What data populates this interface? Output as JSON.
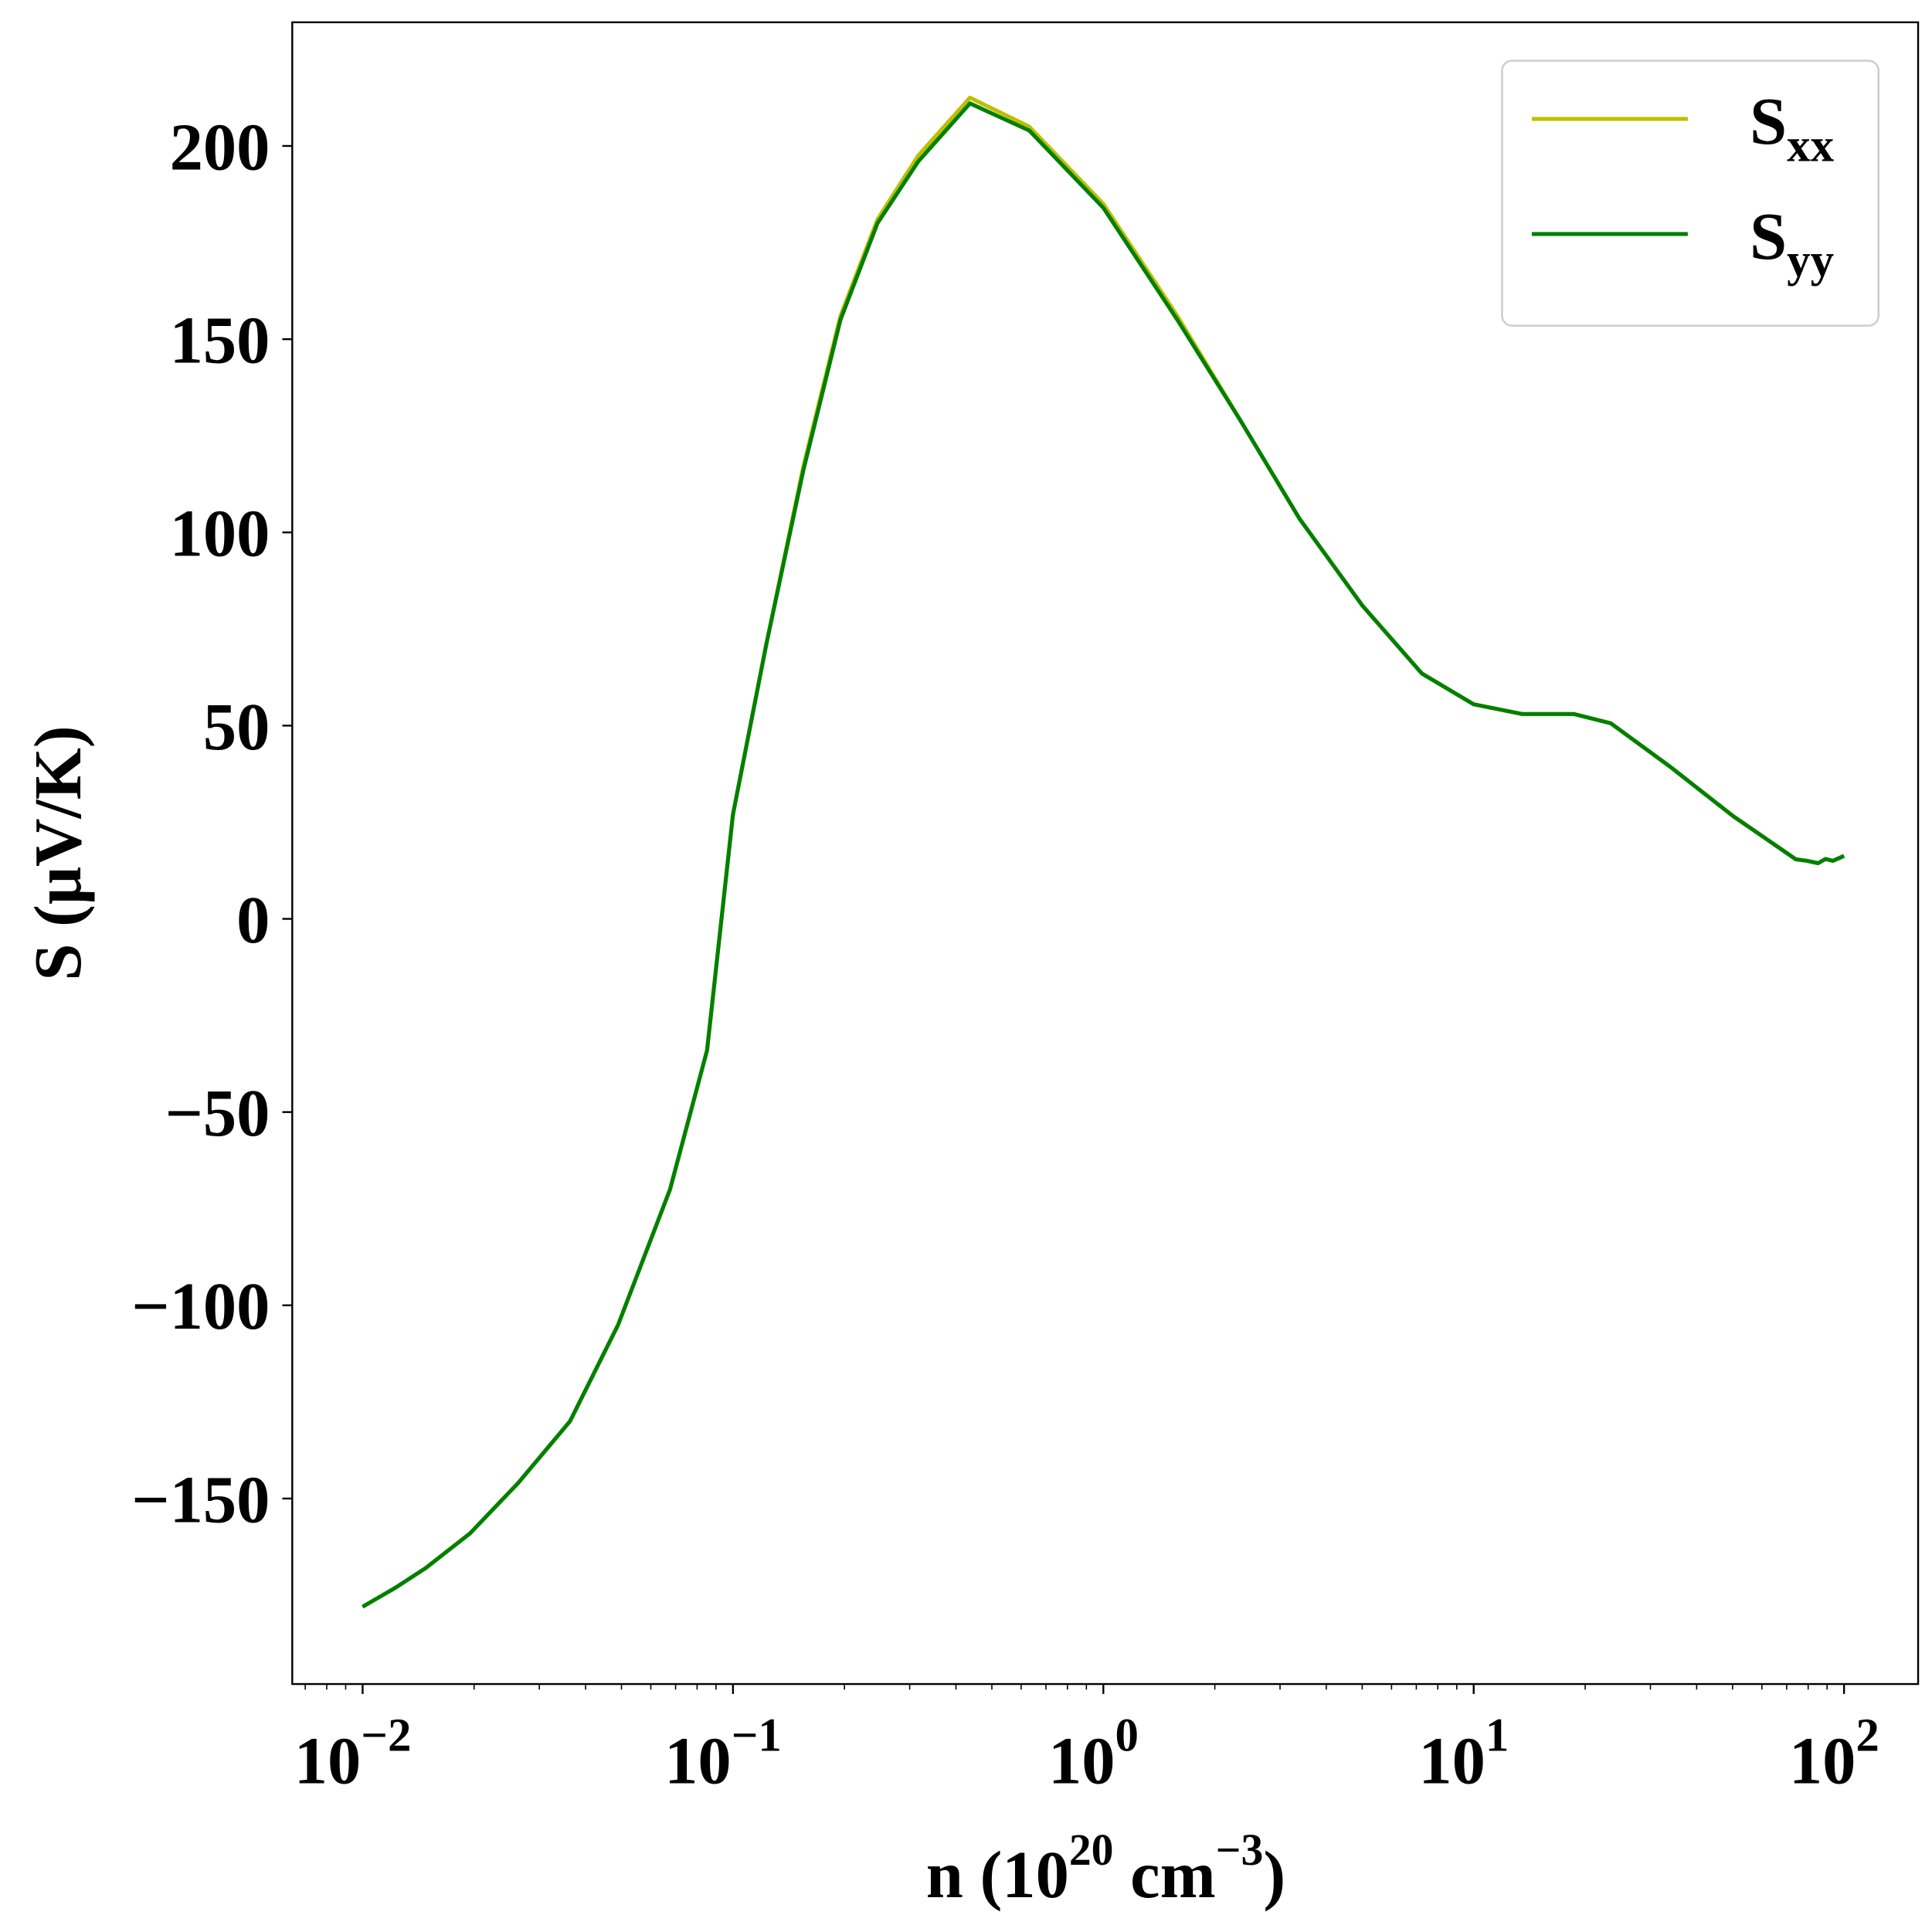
{
  "chart_data": {
    "type": "line",
    "xscale": "log",
    "xlabel": {
      "prefix": "n (10",
      "exp1": "20",
      "mid": " cm",
      "exp2": "−3",
      "suffix": ")"
    },
    "ylabel": "S (μV/K)",
    "xlim_log10": [
      -2.19,
      2.2
    ],
    "ylim": [
      -198,
      232
    ],
    "grid": false,
    "legend_placement": "top-right",
    "x_ticks": [
      {
        "value": 0.01,
        "base": "10",
        "exp": "−2"
      },
      {
        "value": 0.1,
        "base": "10",
        "exp": "−1"
      },
      {
        "value": 1,
        "base": "10",
        "exp": "0"
      },
      {
        "value": 10,
        "base": "10",
        "exp": "1"
      },
      {
        "value": 100,
        "base": "10",
        "exp": "2"
      }
    ],
    "y_ticks": [
      {
        "value": -150,
        "label": "−150"
      },
      {
        "value": -100,
        "label": "−100"
      },
      {
        "value": -50,
        "label": "−50"
      },
      {
        "value": 0,
        "label": "0"
      },
      {
        "value": 50,
        "label": "50"
      },
      {
        "value": 100,
        "label": "100"
      },
      {
        "value": 150,
        "label": "150"
      },
      {
        "value": 200,
        "label": "200"
      }
    ],
    "log10_x": [
      -2.0,
      -1.91,
      -1.83,
      -1.71,
      -1.58,
      -1.44,
      -1.31,
      -1.17,
      -1.07,
      -1.0,
      -0.91,
      -0.81,
      -0.71,
      -0.61,
      -0.5,
      -0.36,
      -0.2,
      0.0,
      0.2,
      0.37,
      0.53,
      0.7,
      0.86,
      1.0,
      1.13,
      1.27,
      1.37,
      1.53,
      1.7,
      1.8,
      1.87,
      1.9,
      1.93,
      1.95,
      1.97,
      2.0
    ],
    "series": [
      {
        "name": "S",
        "sub": "xx",
        "color": "#bfbf00",
        "values": [
          -178,
          -173,
          -168,
          -159,
          -146,
          -130,
          -105,
          -70,
          -34,
          27,
          71,
          117,
          156,
          181,
          197.5,
          212.5,
          205,
          185,
          156,
          129,
          103.5,
          81,
          63.5,
          55.5,
          53,
          53,
          50.6,
          39.4,
          26.6,
          20,
          15.4,
          15.0,
          14.4,
          15.5,
          15.0,
          16.3
        ]
      },
      {
        "name": "S",
        "sub": "yy",
        "color": "#008000",
        "values": [
          -178,
          -173,
          -168,
          -159,
          -146,
          -130,
          -105,
          -70,
          -34,
          27,
          71,
          116,
          155,
          180,
          196,
          211,
          204,
          184,
          155,
          129,
          103.5,
          81,
          63.5,
          55.5,
          53,
          53,
          50.6,
          39.4,
          26.6,
          20,
          15.4,
          15.0,
          14.4,
          15.5,
          15.0,
          16.3
        ]
      }
    ]
  }
}
